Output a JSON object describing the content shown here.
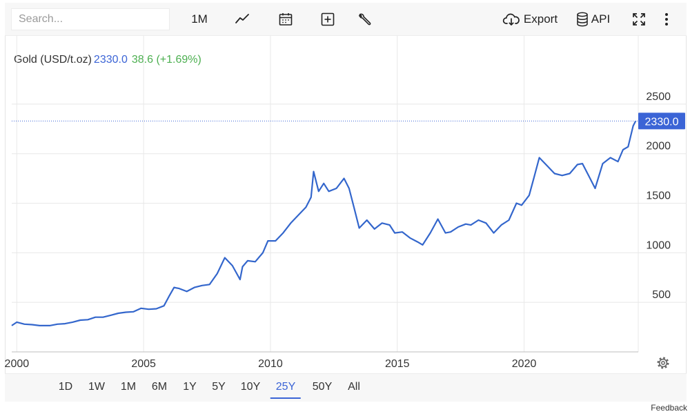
{
  "toolbar": {
    "search_placeholder": "Search...",
    "interval_label": "1M",
    "export_label": "Export",
    "api_label": "API",
    "icons": [
      "line-chart-icon",
      "calendar-icon",
      "plus-square-icon",
      "wrench-icon",
      "cloud-download-icon",
      "database-icon",
      "fullscreen-icon",
      "more-vertical-icon"
    ]
  },
  "quote": {
    "name": "Gold (USD/t.oz)",
    "price": "2330.0",
    "change": "38.6 (+1.69%)"
  },
  "colors": {
    "line": "#3366cc",
    "price": "#3b64d6",
    "change_positive": "#4caf50",
    "grid": "#e8e8e8",
    "price_tag_bg": "#3b64d6"
  },
  "chart_data": {
    "type": "line",
    "title": "Gold (USD/t.oz)",
    "xlabel": "",
    "ylabel": "",
    "xlim": [
      1999.8,
      2024.5
    ],
    "ylim": [
      0,
      2750
    ],
    "x_ticks": [
      2000,
      2005,
      2010,
      2015,
      2020
    ],
    "x_tick_labels": [
      "2000",
      "2005",
      "2010",
      "2015",
      "2020"
    ],
    "y_ticks": [
      500,
      1000,
      1500,
      2000,
      2500
    ],
    "y_tick_labels": [
      "500",
      "1000",
      "1500",
      "2000",
      "2500"
    ],
    "last_value_label": "2330.0",
    "last_value": 2330,
    "grid": true,
    "series": [
      {
        "name": "Gold (USD/t.oz)",
        "x": [
          1999.8,
          2000.0,
          2000.3,
          2000.6,
          2000.9,
          2001.3,
          2001.6,
          2001.9,
          2002.2,
          2002.5,
          2002.8,
          2003.1,
          2003.4,
          2003.7,
          2004.0,
          2004.3,
          2004.6,
          2004.9,
          2005.2,
          2005.5,
          2005.8,
          2006.0,
          2006.2,
          2006.4,
          2006.7,
          2007.0,
          2007.3,
          2007.6,
          2007.9,
          2008.2,
          2008.5,
          2008.8,
          2008.9,
          2009.1,
          2009.4,
          2009.7,
          2009.9,
          2010.2,
          2010.5,
          2010.8,
          2011.1,
          2011.4,
          2011.6,
          2011.7,
          2011.9,
          2012.1,
          2012.3,
          2012.6,
          2012.9,
          2013.1,
          2013.3,
          2013.5,
          2013.8,
          2014.1,
          2014.4,
          2014.7,
          2014.9,
          2015.2,
          2015.5,
          2015.8,
          2016.0,
          2016.3,
          2016.6,
          2016.9,
          2017.1,
          2017.4,
          2017.7,
          2017.9,
          2018.2,
          2018.5,
          2018.8,
          2019.1,
          2019.4,
          2019.7,
          2019.9,
          2020.2,
          2020.4,
          2020.6,
          2020.9,
          2021.2,
          2021.5,
          2021.8,
          2022.1,
          2022.3,
          2022.6,
          2022.8,
          2023.1,
          2023.4,
          2023.7,
          2023.9,
          2024.1,
          2024.3,
          2024.4
        ],
        "y": [
          265,
          300,
          280,
          275,
          265,
          265,
          280,
          285,
          300,
          320,
          325,
          350,
          350,
          370,
          390,
          400,
          405,
          440,
          430,
          435,
          465,
          560,
          650,
          640,
          610,
          650,
          670,
          680,
          790,
          950,
          870,
          730,
          860,
          920,
          910,
          1000,
          1120,
          1120,
          1200,
          1300,
          1380,
          1460,
          1560,
          1820,
          1620,
          1700,
          1620,
          1650,
          1750,
          1650,
          1450,
          1250,
          1330,
          1240,
          1300,
          1280,
          1200,
          1210,
          1150,
          1110,
          1080,
          1200,
          1340,
          1200,
          1210,
          1260,
          1290,
          1280,
          1330,
          1300,
          1200,
          1280,
          1330,
          1500,
          1480,
          1580,
          1770,
          1960,
          1880,
          1800,
          1780,
          1800,
          1890,
          1900,
          1750,
          1650,
          1900,
          1960,
          1920,
          2040,
          2070,
          2280,
          2330
        ]
      }
    ]
  },
  "time_ranges": [
    "1D",
    "1W",
    "1M",
    "6M",
    "1Y",
    "5Y",
    "10Y",
    "25Y",
    "50Y",
    "All"
  ],
  "active_range": "25Y",
  "footer": {
    "feedback": "Feedback"
  }
}
